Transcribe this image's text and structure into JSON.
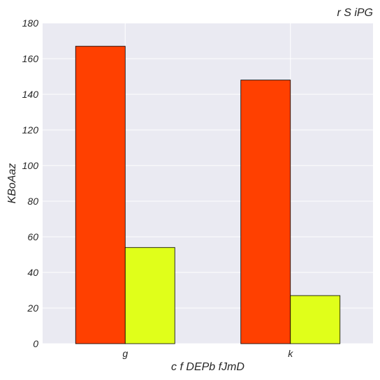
{
  "chart_data": {
    "type": "bar",
    "title": "r  S iPG",
    "xlabel": "c f DEPb fJmD",
    "ylabel": "KBoAaz",
    "categories": [
      "g",
      "k"
    ],
    "series": [
      {
        "values": [
          167,
          148
        ],
        "color": "#ff4000"
      },
      {
        "values": [
          54,
          27
        ],
        "color": "#e0ff1a"
      }
    ],
    "ylim": [
      0,
      180
    ],
    "yticks": [
      0,
      20,
      40,
      60,
      80,
      100,
      120,
      140,
      160,
      180
    ],
    "grid": true,
    "background": "#eaeaf2"
  }
}
